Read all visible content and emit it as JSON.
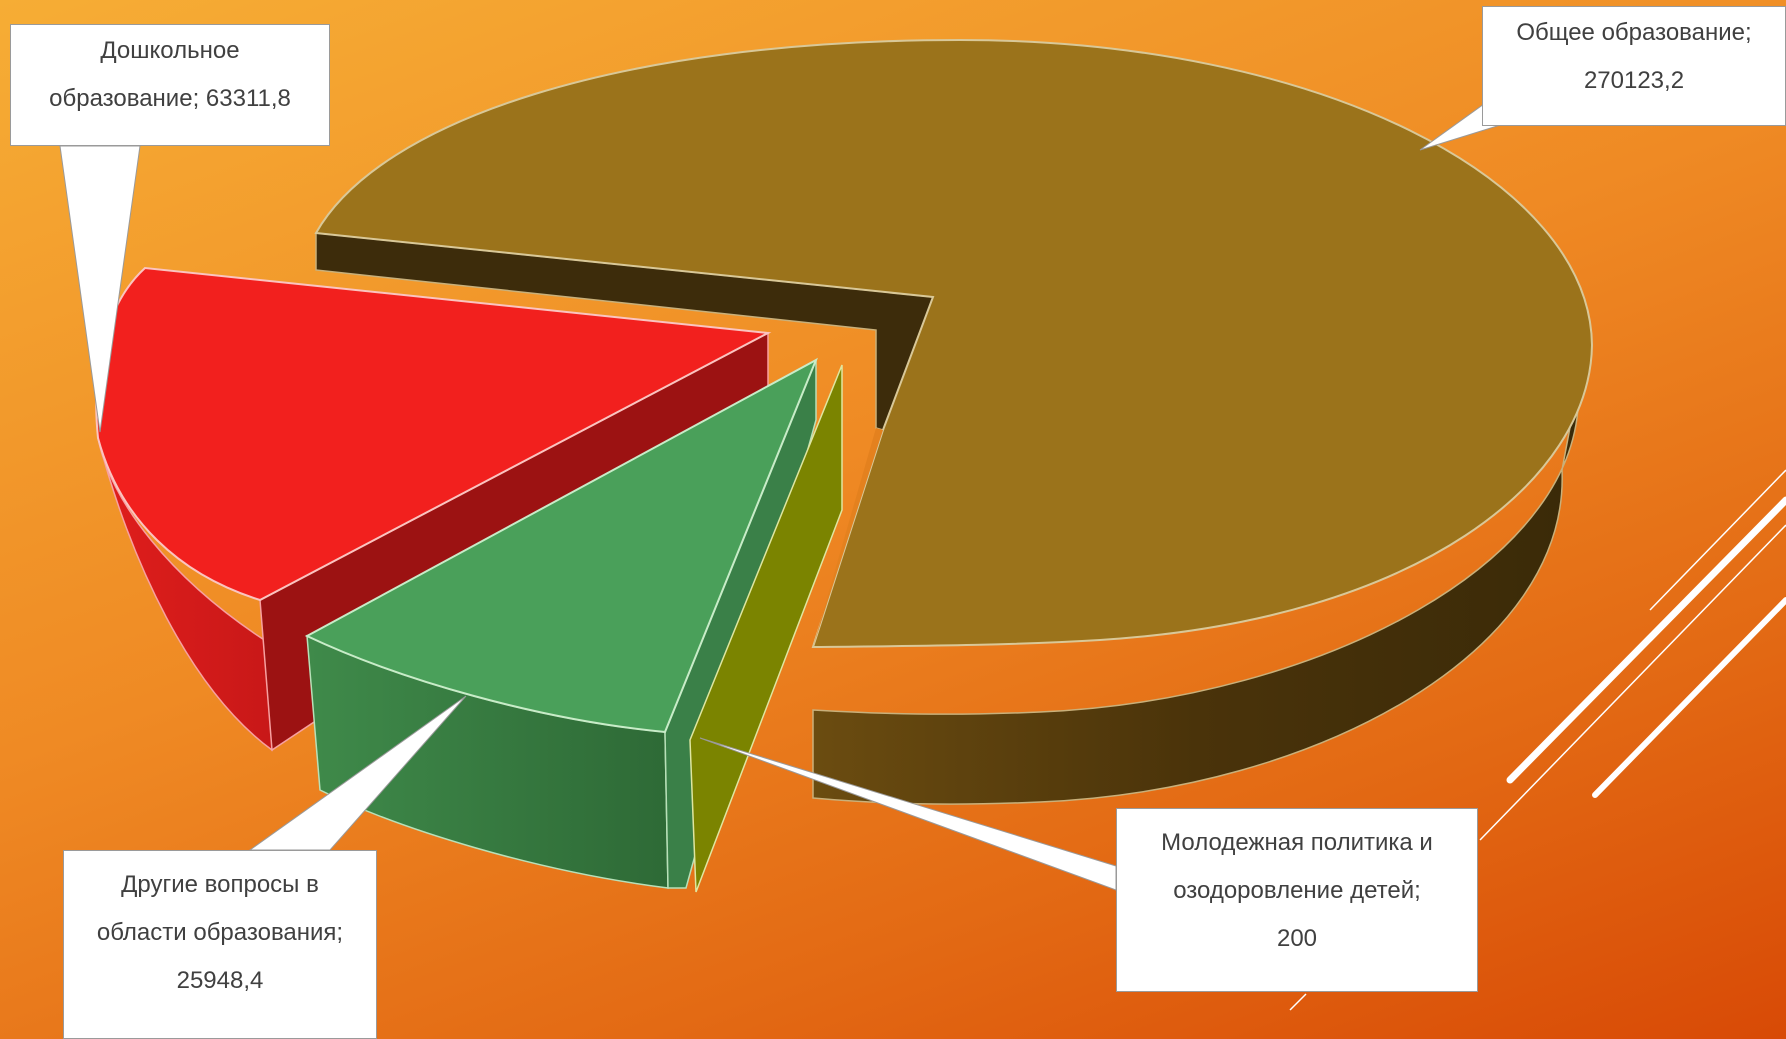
{
  "chart_data": {
    "type": "pie",
    "style": "3d-exploded",
    "slices": [
      {
        "label_lines": [
          "Общее образование;",
          "270123,2"
        ],
        "value": 270123.2,
        "color": "#9b731b"
      },
      {
        "label_lines": [
          "Молодежная политика и",
          "озодоровление детей;",
          "200"
        ],
        "value": 200,
        "color": "#7b8400"
      },
      {
        "label_lines": [
          "Другие вопросы в",
          "области образования;",
          "25948,4"
        ],
        "value": 25948.4,
        "color": "#4aa05a"
      },
      {
        "label_lines": [
          "Дошкольное",
          "образование; 63311,8"
        ],
        "value": 63311.8,
        "color": "#f2201e"
      }
    ]
  }
}
